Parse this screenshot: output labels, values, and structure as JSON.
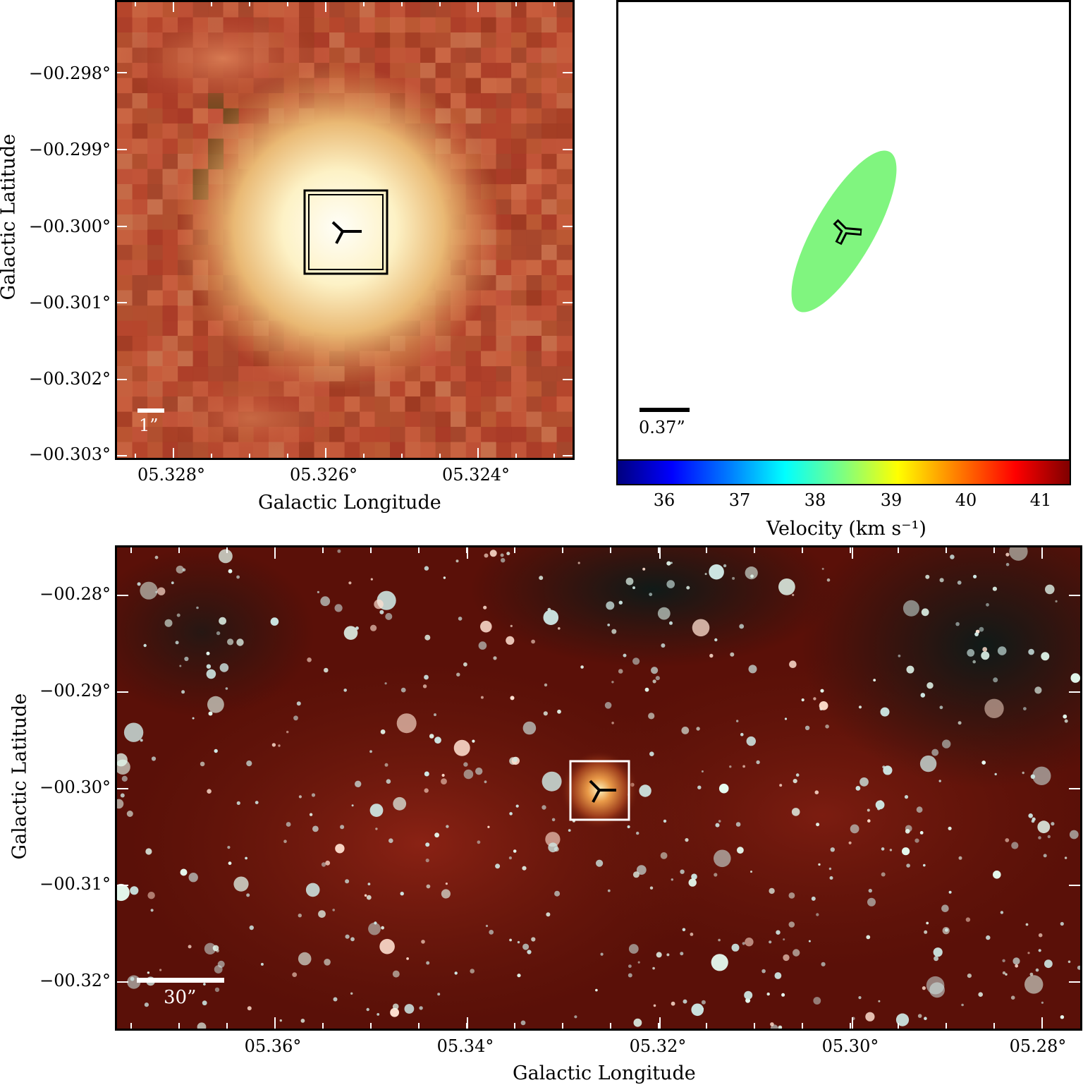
{
  "panel_a": {
    "y_ticks": [
      "−00.298°",
      "−00.299°",
      "−00.300°",
      "−00.301°",
      "−00.302°",
      "−00.303°"
    ],
    "x_ticks": [
      "05.328°",
      "05.326°",
      "05.324°"
    ],
    "xlabel": "Galactic Longitude",
    "ylabel": "Galactic Latitude",
    "scalebar_label": "1”"
  },
  "panel_b": {
    "scalebar_label": "0.37”",
    "ellipse_color": "#80f57f",
    "colorbar": {
      "ticks": [
        "36",
        "37",
        "38",
        "39",
        "40",
        "41"
      ],
      "label": "Velocity (km s⁻¹)",
      "colormap": "jet"
    }
  },
  "panel_c": {
    "y_ticks": [
      "−00.28°",
      "−00.29°",
      "−00.30°",
      "−00.31°",
      "−00.32°"
    ],
    "x_ticks": [
      "05.36°",
      "05.34°",
      "05.32°",
      "05.30°",
      "05.28°"
    ],
    "xlabel": "Galactic Longitude",
    "ylabel": "Galactic Latitude",
    "scalebar_label": "30”"
  },
  "colors": {
    "panel_a_base": "#b84a2e",
    "panel_c_base": "#5a1008",
    "marker": "#000000",
    "box": "#ffffff"
  }
}
